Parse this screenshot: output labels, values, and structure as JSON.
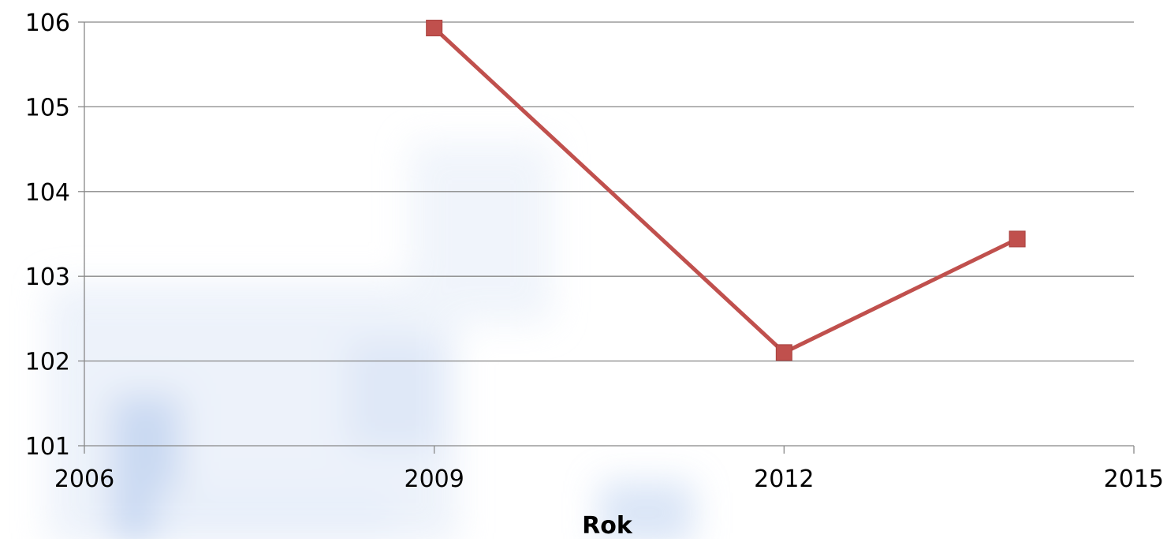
{
  "chart_data": {
    "type": "line",
    "title": "",
    "xlabel": "Rok",
    "ylabel": "",
    "xlim": [
      2006,
      2015
    ],
    "ylim": [
      101,
      106
    ],
    "x_ticks": [
      "2006",
      "2009",
      "2012",
      "2015"
    ],
    "y_ticks": [
      "101",
      "102",
      "103",
      "104",
      "105",
      "106"
    ],
    "grid": true,
    "legend": "none",
    "series": [
      {
        "x": [
          2009,
          2012,
          2014
        ],
        "y": [
          105.93,
          102.1,
          103.44
        ],
        "color": "#C0504D",
        "marker": "square"
      }
    ]
  }
}
